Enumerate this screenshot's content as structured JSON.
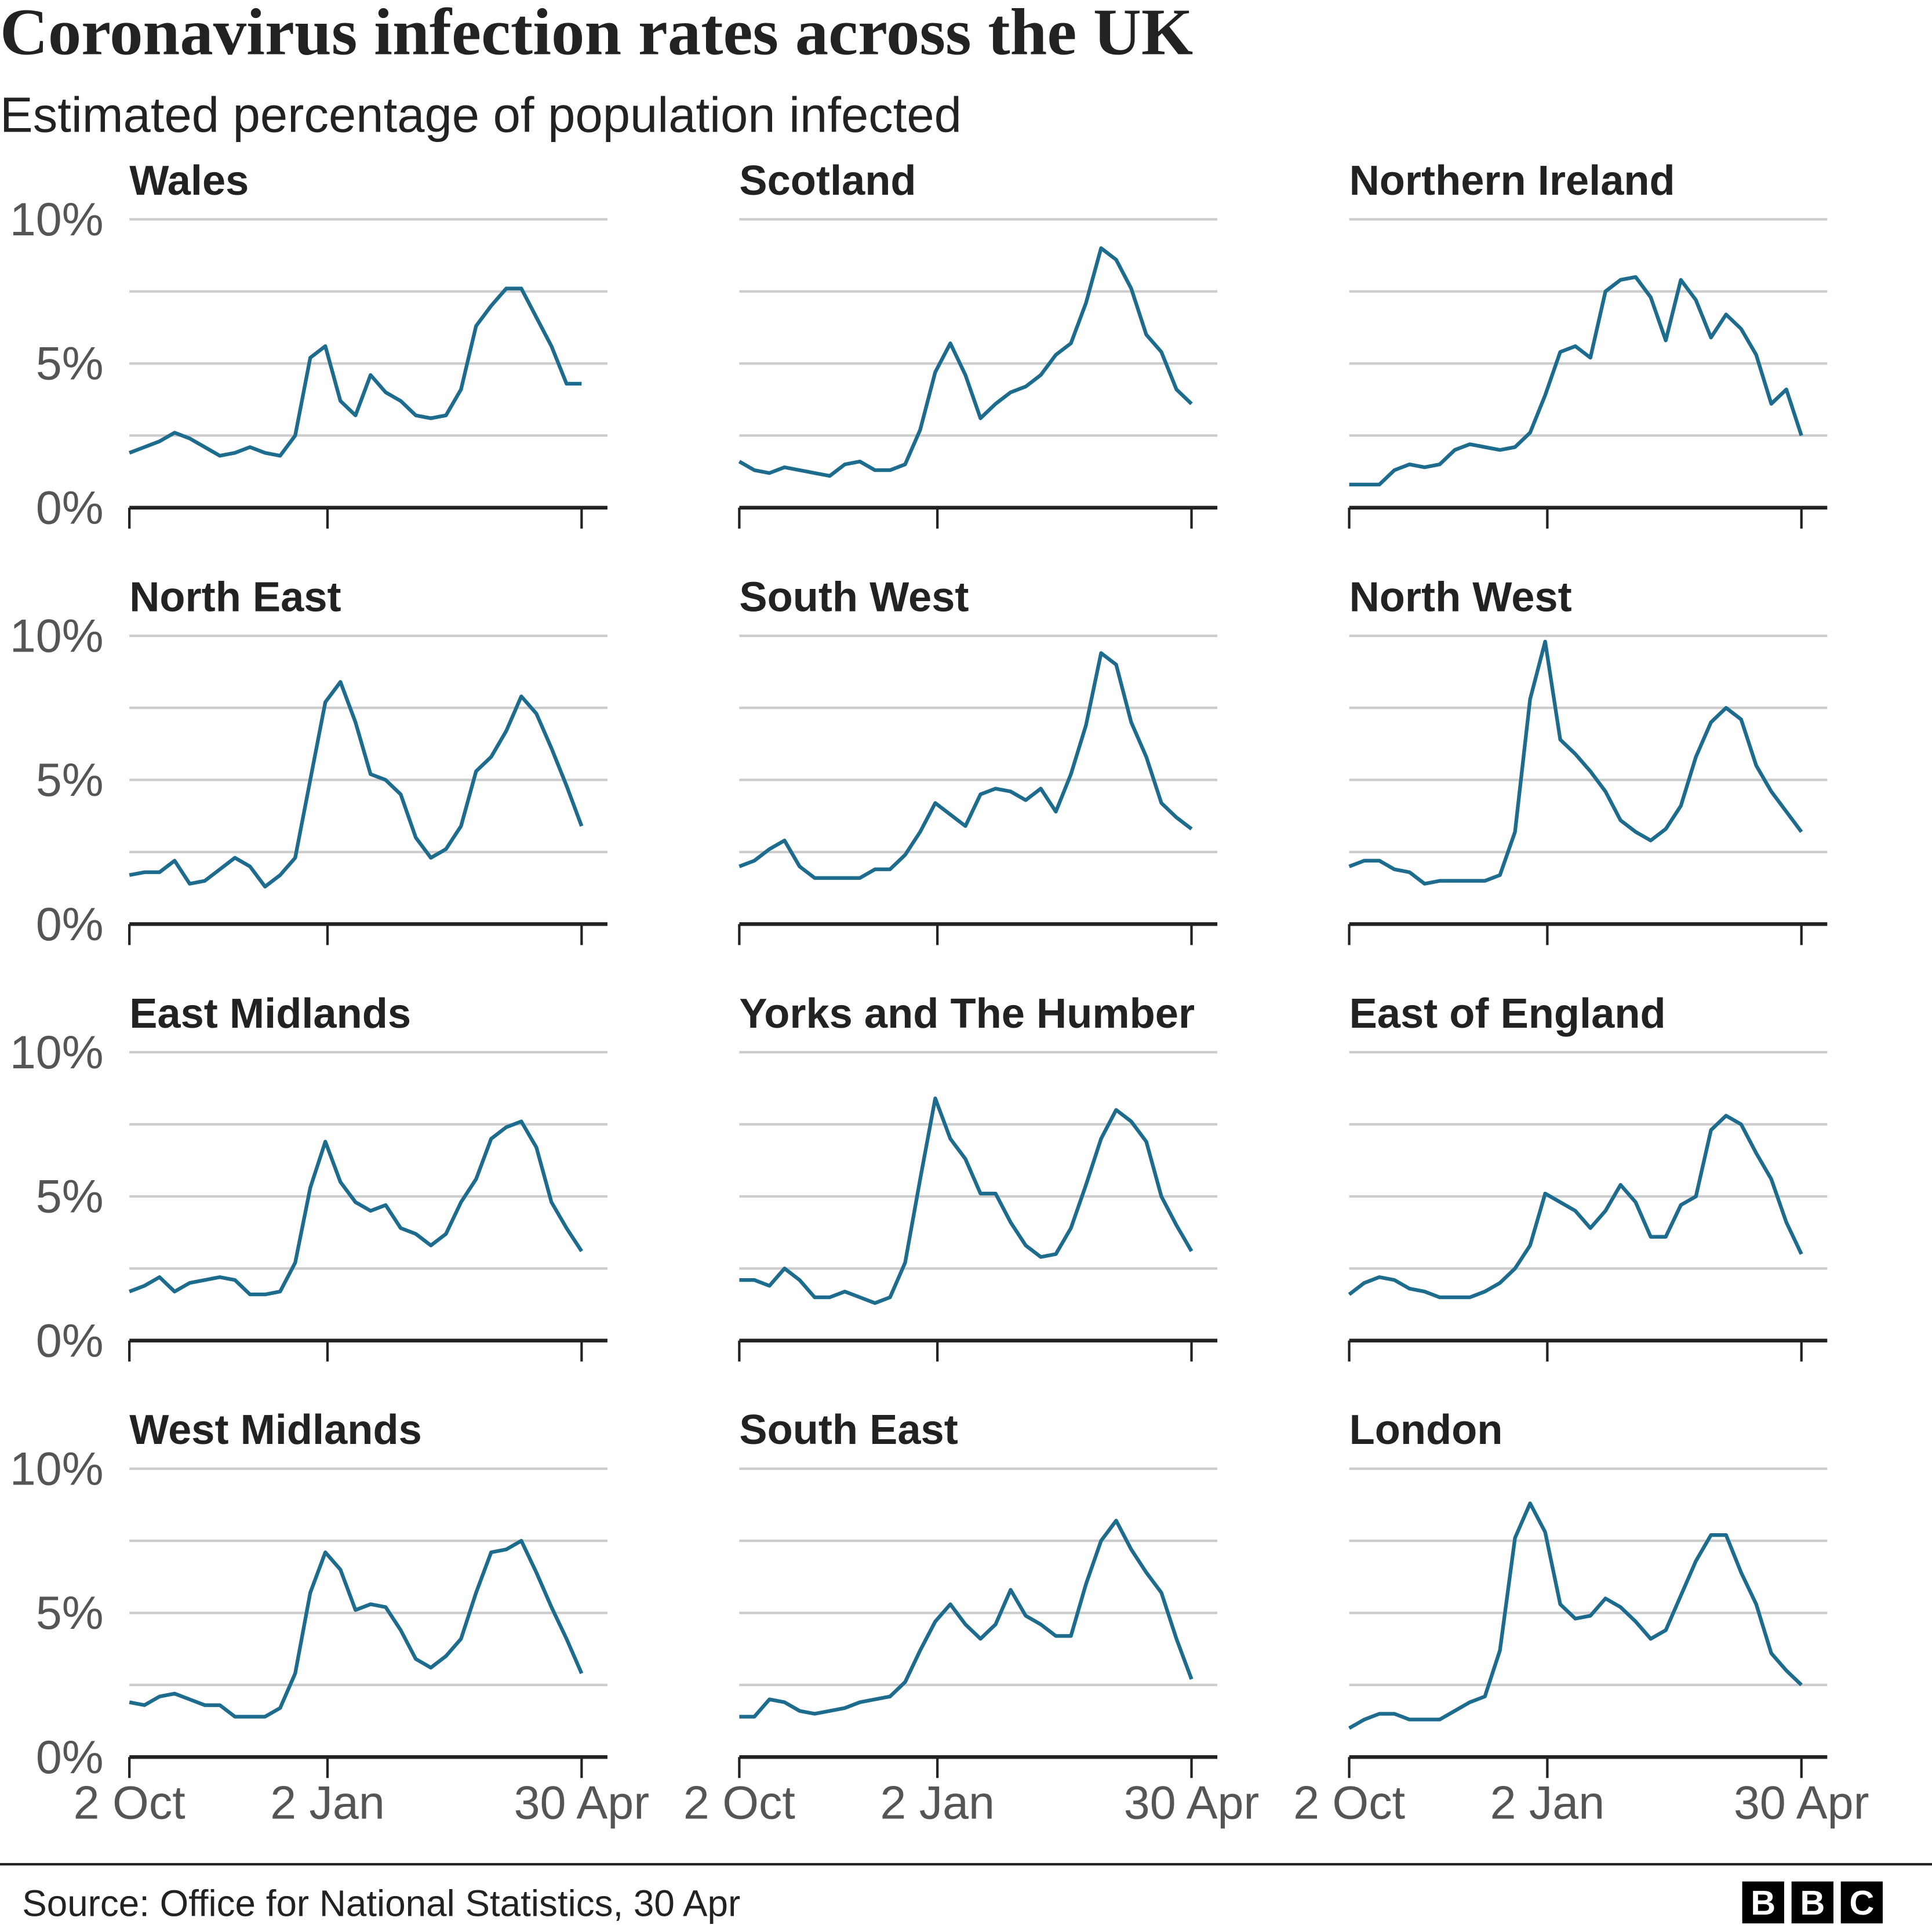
{
  "title": "Coronavirus infection rates across the UK",
  "subtitle": "Estimated percentage of population infected",
  "source": "Source: Office for National Statistics, 30 Apr",
  "logo": [
    "B",
    "B",
    "C"
  ],
  "chart_data": [
    {
      "type": "line",
      "title": "Wales",
      "color": "#1d6c8e",
      "x": [
        0,
        7,
        14,
        21,
        28,
        35,
        42,
        49,
        56,
        63,
        70,
        77,
        84,
        91,
        98,
        105,
        112,
        119,
        126,
        133,
        140,
        147,
        154,
        161,
        168,
        175,
        182,
        189,
        196,
        203,
        210
      ],
      "values": [
        1.9,
        2.1,
        2.3,
        2.6,
        2.4,
        2.1,
        1.8,
        1.9,
        2.1,
        1.9,
        1.8,
        2.5,
        5.2,
        5.6,
        3.7,
        3.2,
        4.6,
        4.0,
        3.7,
        3.2,
        3.1,
        3.2,
        4.1,
        6.3,
        7.0,
        7.6,
        7.6,
        6.6,
        5.6,
        4.3,
        4.3
      ],
      "xlim": [
        0,
        222
      ],
      "ylim": [
        0,
        10
      ],
      "xticks": [
        {
          "value": 0,
          "label": "2 Oct"
        },
        {
          "value": 92,
          "label": "2 Jan"
        },
        {
          "value": 210,
          "label": "30 Apr"
        }
      ],
      "yticks": [
        {
          "value": 0,
          "label": "0%"
        },
        {
          "value": 2.5,
          "label": null
        },
        {
          "value": 5,
          "label": "5%"
        },
        {
          "value": 7.5,
          "label": null
        },
        {
          "value": 10,
          "label": "10%"
        }
      ]
    },
    {
      "type": "line",
      "title": "Scotland",
      "color": "#1d6c8e",
      "x": [
        0,
        7,
        14,
        21,
        28,
        35,
        42,
        49,
        56,
        63,
        70,
        77,
        84,
        91,
        98,
        105,
        112,
        119,
        126,
        133,
        140,
        147,
        154,
        161,
        168,
        175,
        182,
        189,
        196,
        203,
        210
      ],
      "values": [
        1.6,
        1.3,
        1.2,
        1.4,
        1.3,
        1.2,
        1.1,
        1.5,
        1.6,
        1.3,
        1.3,
        1.5,
        2.7,
        4.7,
        5.7,
        4.6,
        3.1,
        3.6,
        4.0,
        4.2,
        4.6,
        5.3,
        5.7,
        7.1,
        9.0,
        8.6,
        7.6,
        6.0,
        5.4,
        4.1,
        3.6
      ],
      "xlim": [
        0,
        222
      ],
      "ylim": [
        0,
        10
      ],
      "xticks": [
        {
          "value": 0,
          "label": "2 Oct"
        },
        {
          "value": 92,
          "label": "2 Jan"
        },
        {
          "value": 210,
          "label": "30 Apr"
        }
      ],
      "yticks": [
        {
          "value": 0,
          "label": "0%"
        },
        {
          "value": 2.5,
          "label": null
        },
        {
          "value": 5,
          "label": "5%"
        },
        {
          "value": 7.5,
          "label": null
        },
        {
          "value": 10,
          "label": "10%"
        }
      ]
    },
    {
      "type": "line",
      "title": "Northern Ireland",
      "color": "#1d6c8e",
      "x": [
        0,
        7,
        14,
        21,
        28,
        35,
        42,
        49,
        56,
        63,
        70,
        77,
        84,
        91,
        98,
        105,
        112,
        119,
        126,
        133,
        140,
        147,
        154,
        161,
        168,
        175,
        182,
        189,
        196,
        203,
        210
      ],
      "values": [
        0.8,
        0.8,
        0.8,
        1.3,
        1.5,
        1.4,
        1.5,
        2.0,
        2.2,
        2.1,
        2.0,
        2.1,
        2.6,
        3.9,
        5.4,
        5.6,
        5.2,
        7.5,
        7.9,
        8.0,
        7.3,
        5.8,
        7.9,
        7.2,
        5.9,
        6.7,
        6.2,
        5.3,
        3.6,
        4.1,
        2.5
      ],
      "xlim": [
        0,
        222
      ],
      "ylim": [
        0,
        10
      ],
      "xticks": [
        {
          "value": 0,
          "label": "2 Oct"
        },
        {
          "value": 92,
          "label": "2 Jan"
        },
        {
          "value": 210,
          "label": "30 Apr"
        }
      ],
      "yticks": [
        {
          "value": 0,
          "label": "0%"
        },
        {
          "value": 2.5,
          "label": null
        },
        {
          "value": 5,
          "label": "5%"
        },
        {
          "value": 7.5,
          "label": null
        },
        {
          "value": 10,
          "label": "10%"
        }
      ]
    },
    {
      "type": "line",
      "title": "North East",
      "color": "#1d6c8e",
      "x": [
        0,
        7,
        14,
        21,
        28,
        35,
        42,
        49,
        56,
        63,
        70,
        77,
        84,
        91,
        98,
        105,
        112,
        119,
        126,
        133,
        140,
        147,
        154,
        161,
        168,
        175,
        182,
        189,
        196,
        203,
        210
      ],
      "values": [
        1.7,
        1.8,
        1.8,
        2.2,
        1.4,
        1.5,
        1.9,
        2.3,
        2.0,
        1.3,
        1.7,
        2.3,
        5.0,
        7.7,
        8.4,
        7.0,
        5.2,
        5.0,
        4.5,
        3.0,
        2.3,
        2.6,
        3.4,
        5.3,
        5.8,
        6.7,
        7.9,
        7.3,
        6.1,
        4.8,
        3.4
      ],
      "xlim": [
        0,
        222
      ],
      "ylim": [
        0,
        10
      ],
      "xticks": [
        {
          "value": 0,
          "label": "2 Oct"
        },
        {
          "value": 92,
          "label": "2 Jan"
        },
        {
          "value": 210,
          "label": "30 Apr"
        }
      ],
      "yticks": [
        {
          "value": 0,
          "label": "0%"
        },
        {
          "value": 2.5,
          "label": null
        },
        {
          "value": 5,
          "label": "5%"
        },
        {
          "value": 7.5,
          "label": null
        },
        {
          "value": 10,
          "label": "10%"
        }
      ]
    },
    {
      "type": "line",
      "title": "South West",
      "color": "#1d6c8e",
      "x": [
        0,
        7,
        14,
        21,
        28,
        35,
        42,
        49,
        56,
        63,
        70,
        77,
        84,
        91,
        98,
        105,
        112,
        119,
        126,
        133,
        140,
        147,
        154,
        161,
        168,
        175,
        182,
        189,
        196,
        203,
        210
      ],
      "values": [
        2.0,
        2.2,
        2.6,
        2.9,
        2.0,
        1.6,
        1.6,
        1.6,
        1.6,
        1.9,
        1.9,
        2.4,
        3.2,
        4.2,
        3.8,
        3.4,
        4.5,
        4.7,
        4.6,
        4.3,
        4.7,
        3.9,
        5.2,
        6.9,
        9.4,
        9.0,
        7.0,
        5.8,
        4.2,
        3.7,
        3.3
      ],
      "xlim": [
        0,
        222
      ],
      "ylim": [
        0,
        10
      ],
      "xticks": [
        {
          "value": 0,
          "label": "2 Oct"
        },
        {
          "value": 92,
          "label": "2 Jan"
        },
        {
          "value": 210,
          "label": "30 Apr"
        }
      ],
      "yticks": [
        {
          "value": 0,
          "label": "0%"
        },
        {
          "value": 2.5,
          "label": null
        },
        {
          "value": 5,
          "label": "5%"
        },
        {
          "value": 7.5,
          "label": null
        },
        {
          "value": 10,
          "label": "10%"
        }
      ]
    },
    {
      "type": "line",
      "title": "North West",
      "color": "#1d6c8e",
      "x": [
        0,
        7,
        14,
        21,
        28,
        35,
        42,
        49,
        56,
        63,
        70,
        77,
        84,
        91,
        98,
        105,
        112,
        119,
        126,
        133,
        140,
        147,
        154,
        161,
        168,
        175,
        182,
        189,
        196,
        203,
        210
      ],
      "values": [
        2.0,
        2.2,
        2.2,
        1.9,
        1.8,
        1.4,
        1.5,
        1.5,
        1.5,
        1.5,
        1.7,
        3.2,
        7.8,
        9.8,
        6.4,
        5.9,
        5.3,
        4.6,
        3.6,
        3.2,
        2.9,
        3.3,
        4.1,
        5.8,
        7.0,
        7.5,
        7.1,
        5.5,
        4.6,
        3.9,
        3.2
      ],
      "xlim": [
        0,
        222
      ],
      "ylim": [
        0,
        10
      ],
      "xticks": [
        {
          "value": 0,
          "label": "2 Oct"
        },
        {
          "value": 92,
          "label": "2 Jan"
        },
        {
          "value": 210,
          "label": "30 Apr"
        }
      ],
      "yticks": [
        {
          "value": 0,
          "label": "0%"
        },
        {
          "value": 2.5,
          "label": null
        },
        {
          "value": 5,
          "label": "5%"
        },
        {
          "value": 7.5,
          "label": null
        },
        {
          "value": 10,
          "label": "10%"
        }
      ]
    },
    {
      "type": "line",
      "title": "East Midlands",
      "color": "#1d6c8e",
      "x": [
        0,
        7,
        14,
        21,
        28,
        35,
        42,
        49,
        56,
        63,
        70,
        77,
        84,
        91,
        98,
        105,
        112,
        119,
        126,
        133,
        140,
        147,
        154,
        161,
        168,
        175,
        182,
        189,
        196,
        203,
        210
      ],
      "values": [
        1.7,
        1.9,
        2.2,
        1.7,
        2.0,
        2.1,
        2.2,
        2.1,
        1.6,
        1.6,
        1.7,
        2.7,
        5.3,
        6.9,
        5.5,
        4.8,
        4.5,
        4.7,
        3.9,
        3.7,
        3.3,
        3.7,
        4.8,
        5.6,
        7.0,
        7.4,
        7.6,
        6.7,
        4.8,
        3.9,
        3.1
      ],
      "xlim": [
        0,
        222
      ],
      "ylim": [
        0,
        10
      ],
      "xticks": [
        {
          "value": 0,
          "label": "2 Oct"
        },
        {
          "value": 92,
          "label": "2 Jan"
        },
        {
          "value": 210,
          "label": "30 Apr"
        }
      ],
      "yticks": [
        {
          "value": 0,
          "label": "0%"
        },
        {
          "value": 2.5,
          "label": null
        },
        {
          "value": 5,
          "label": "5%"
        },
        {
          "value": 7.5,
          "label": null
        },
        {
          "value": 10,
          "label": "10%"
        }
      ]
    },
    {
      "type": "line",
      "title": "Yorks and The Humber",
      "color": "#1d6c8e",
      "x": [
        0,
        7,
        14,
        21,
        28,
        35,
        42,
        49,
        56,
        63,
        70,
        77,
        84,
        91,
        98,
        105,
        112,
        119,
        126,
        133,
        140,
        147,
        154,
        161,
        168,
        175,
        182,
        189,
        196,
        203,
        210
      ],
      "values": [
        2.1,
        2.1,
        1.9,
        2.5,
        2.1,
        1.5,
        1.5,
        1.7,
        1.5,
        1.3,
        1.5,
        2.7,
        5.6,
        8.4,
        7.0,
        6.3,
        5.1,
        5.1,
        4.1,
        3.3,
        2.9,
        3.0,
        3.9,
        5.4,
        7.0,
        8.0,
        7.6,
        6.9,
        5.0,
        4.0,
        3.1
      ],
      "xlim": [
        0,
        222
      ],
      "ylim": [
        0,
        10
      ],
      "xticks": [
        {
          "value": 0,
          "label": "2 Oct"
        },
        {
          "value": 92,
          "label": "2 Jan"
        },
        {
          "value": 210,
          "label": "30 Apr"
        }
      ],
      "yticks": [
        {
          "value": 0,
          "label": "0%"
        },
        {
          "value": 2.5,
          "label": null
        },
        {
          "value": 5,
          "label": "5%"
        },
        {
          "value": 7.5,
          "label": null
        },
        {
          "value": 10,
          "label": "10%"
        }
      ]
    },
    {
      "type": "line",
      "title": "East of England",
      "color": "#1d6c8e",
      "x": [
        0,
        7,
        14,
        21,
        28,
        35,
        42,
        49,
        56,
        63,
        70,
        77,
        84,
        91,
        98,
        105,
        112,
        119,
        126,
        133,
        140,
        147,
        154,
        161,
        168,
        175,
        182,
        189,
        196,
        203,
        210
      ],
      "values": [
        1.6,
        2.0,
        2.2,
        2.1,
        1.8,
        1.7,
        1.5,
        1.5,
        1.5,
        1.7,
        2.0,
        2.5,
        3.3,
        5.1,
        4.8,
        4.5,
        3.9,
        4.5,
        5.4,
        4.8,
        3.6,
        3.6,
        4.7,
        5.0,
        7.3,
        7.8,
        7.5,
        6.5,
        5.6,
        4.1,
        3.0
      ],
      "xlim": [
        0,
        222
      ],
      "ylim": [
        0,
        10
      ],
      "xticks": [
        {
          "value": 0,
          "label": "2 Oct"
        },
        {
          "value": 92,
          "label": "2 Jan"
        },
        {
          "value": 210,
          "label": "30 Apr"
        }
      ],
      "yticks": [
        {
          "value": 0,
          "label": "0%"
        },
        {
          "value": 2.5,
          "label": null
        },
        {
          "value": 5,
          "label": "5%"
        },
        {
          "value": 7.5,
          "label": null
        },
        {
          "value": 10,
          "label": "10%"
        }
      ]
    },
    {
      "type": "line",
      "title": "West Midlands",
      "color": "#1d6c8e",
      "x": [
        0,
        7,
        14,
        21,
        28,
        35,
        42,
        49,
        56,
        63,
        70,
        77,
        84,
        91,
        98,
        105,
        112,
        119,
        126,
        133,
        140,
        147,
        154,
        161,
        168,
        175,
        182,
        189,
        196,
        203,
        210
      ],
      "values": [
        1.9,
        1.8,
        2.1,
        2.2,
        2.0,
        1.8,
        1.8,
        1.4,
        1.4,
        1.4,
        1.7,
        2.9,
        5.7,
        7.1,
        6.5,
        5.1,
        5.3,
        5.2,
        4.4,
        3.4,
        3.1,
        3.5,
        4.1,
        5.7,
        7.1,
        7.2,
        7.5,
        6.4,
        5.2,
        4.1,
        2.9
      ],
      "xlim": [
        0,
        222
      ],
      "ylim": [
        0,
        10
      ],
      "xticks": [
        {
          "value": 0,
          "label": "2 Oct"
        },
        {
          "value": 92,
          "label": "2 Jan"
        },
        {
          "value": 210,
          "label": "30 Apr"
        }
      ],
      "yticks": [
        {
          "value": 0,
          "label": "0%"
        },
        {
          "value": 2.5,
          "label": null
        },
        {
          "value": 5,
          "label": "5%"
        },
        {
          "value": 7.5,
          "label": null
        },
        {
          "value": 10,
          "label": "10%"
        }
      ]
    },
    {
      "type": "line",
      "title": "South East",
      "color": "#1d6c8e",
      "x": [
        0,
        7,
        14,
        21,
        28,
        35,
        42,
        49,
        56,
        63,
        70,
        77,
        84,
        91,
        98,
        105,
        112,
        119,
        126,
        133,
        140,
        147,
        154,
        161,
        168,
        175,
        182,
        189,
        196,
        203,
        210
      ],
      "values": [
        1.4,
        1.4,
        2.0,
        1.9,
        1.6,
        1.5,
        1.6,
        1.7,
        1.9,
        2.0,
        2.1,
        2.6,
        3.7,
        4.7,
        5.3,
        4.6,
        4.1,
        4.6,
        5.8,
        4.9,
        4.6,
        4.2,
        4.2,
        6.0,
        7.5,
        8.2,
        7.2,
        6.4,
        5.7,
        4.1,
        2.7
      ],
      "xlim": [
        0,
        222
      ],
      "ylim": [
        0,
        10
      ],
      "xticks": [
        {
          "value": 0,
          "label": "2 Oct"
        },
        {
          "value": 92,
          "label": "2 Jan"
        },
        {
          "value": 210,
          "label": "30 Apr"
        }
      ],
      "yticks": [
        {
          "value": 0,
          "label": "0%"
        },
        {
          "value": 2.5,
          "label": null
        },
        {
          "value": 5,
          "label": "5%"
        },
        {
          "value": 7.5,
          "label": null
        },
        {
          "value": 10,
          "label": "10%"
        }
      ]
    },
    {
      "type": "line",
      "title": "London",
      "color": "#1d6c8e",
      "x": [
        0,
        7,
        14,
        21,
        28,
        35,
        42,
        49,
        56,
        63,
        70,
        77,
        84,
        91,
        98,
        105,
        112,
        119,
        126,
        133,
        140,
        147,
        154,
        161,
        168,
        175,
        182,
        189,
        196,
        203,
        210
      ],
      "values": [
        1.0,
        1.3,
        1.5,
        1.5,
        1.3,
        1.3,
        1.3,
        1.6,
        1.9,
        2.1,
        3.7,
        7.6,
        8.8,
        7.8,
        5.3,
        4.8,
        4.9,
        5.5,
        5.2,
        4.7,
        4.1,
        4.4,
        5.6,
        6.8,
        7.7,
        7.7,
        6.4,
        5.3,
        3.6,
        3.0,
        2.5
      ],
      "xlim": [
        0,
        222
      ],
      "ylim": [
        0,
        10
      ],
      "xticks": [
        {
          "value": 0,
          "label": "2 Oct"
        },
        {
          "value": 92,
          "label": "2 Jan"
        },
        {
          "value": 210,
          "label": "30 Apr"
        }
      ],
      "yticks": [
        {
          "value": 0,
          "label": "0%"
        },
        {
          "value": 2.5,
          "label": null
        },
        {
          "value": 5,
          "label": "5%"
        },
        {
          "value": 7.5,
          "label": null
        },
        {
          "value": 10,
          "label": "10%"
        }
      ]
    }
  ]
}
